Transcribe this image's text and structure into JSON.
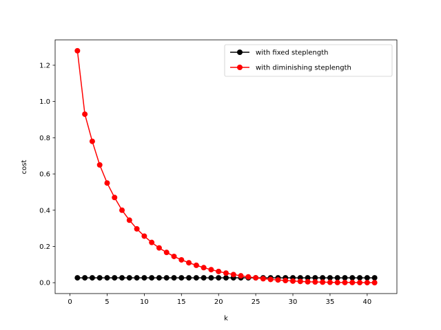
{
  "chart_data": {
    "type": "line",
    "title": "",
    "xlabel": "k",
    "ylabel": "cost",
    "xlim": [
      -2,
      44
    ],
    "ylim": [
      -0.06,
      1.34
    ],
    "xticks": [
      0,
      5,
      10,
      15,
      20,
      25,
      30,
      35,
      40
    ],
    "yticks": [
      0.0,
      0.2,
      0.4,
      0.6,
      0.8,
      1.0,
      1.2
    ],
    "ytick_labels": [
      "0.0",
      "0.2",
      "0.4",
      "0.6",
      "0.8",
      "1.0",
      "1.2"
    ],
    "grid": false,
    "legend_position": "top-right",
    "x": [
      1,
      2,
      3,
      4,
      5,
      6,
      7,
      8,
      9,
      10,
      11,
      12,
      13,
      14,
      15,
      16,
      17,
      18,
      19,
      20,
      21,
      22,
      23,
      24,
      25,
      26,
      27,
      28,
      29,
      30,
      31,
      32,
      33,
      34,
      35,
      36,
      37,
      38,
      39,
      40,
      41
    ],
    "series": [
      {
        "name": "with fixed steplength",
        "color": "#000000",
        "marker": "circle",
        "values": [
          0.027,
          0.027,
          0.027,
          0.027,
          0.027,
          0.027,
          0.027,
          0.027,
          0.027,
          0.027,
          0.027,
          0.027,
          0.027,
          0.027,
          0.027,
          0.027,
          0.027,
          0.027,
          0.027,
          0.027,
          0.027,
          0.027,
          0.027,
          0.027,
          0.027,
          0.027,
          0.027,
          0.027,
          0.027,
          0.027,
          0.027,
          0.027,
          0.027,
          0.027,
          0.027,
          0.027,
          0.027,
          0.027,
          0.027,
          0.027,
          0.027
        ]
      },
      {
        "name": "with diminishing steplength",
        "color": "#ff0000",
        "marker": "circle",
        "values": [
          1.28,
          0.93,
          0.78,
          0.65,
          0.55,
          0.47,
          0.4,
          0.345,
          0.297,
          0.257,
          0.222,
          0.192,
          0.167,
          0.145,
          0.126,
          0.11,
          0.096,
          0.083,
          0.072,
          0.062,
          0.053,
          0.045,
          0.038,
          0.032,
          0.027,
          0.022,
          0.018,
          0.015,
          0.012,
          0.009,
          0.007,
          0.005,
          0.004,
          0.003,
          0.002,
          0.001,
          0.001,
          0.001,
          0.0005,
          0.0003,
          0.0002
        ]
      }
    ]
  }
}
